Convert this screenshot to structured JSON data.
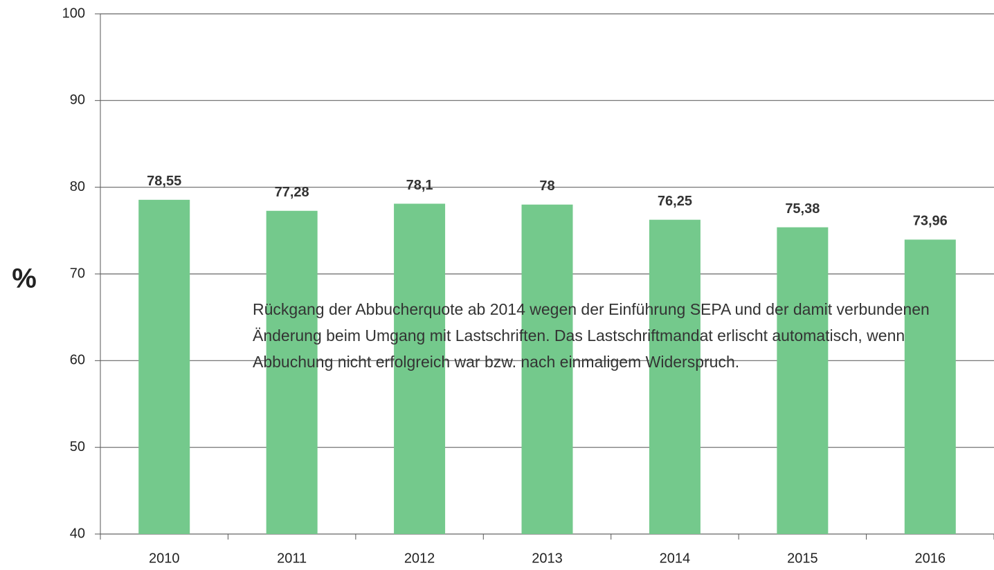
{
  "chart_data": {
    "type": "bar",
    "y_label": "%",
    "annotation": "Rückgang der Abbucherquote ab 2014  wegen der Einführung  SEPA  und der damit verbundenen Änderung beim Umgang mit Lastschriften. Das Lastschriftmandat erlischt automatisch, wenn Abbuchung nicht erfolgreich war bzw. nach einmaligem Widerspruch.",
    "categories": [
      "2010",
      "2011",
      "2012",
      "2013",
      "2014",
      "2015",
      "2016"
    ],
    "values": [
      78.55,
      77.28,
      78.1,
      78,
      76.25,
      75.38,
      73.96
    ],
    "value_labels": [
      "78,55",
      "77,28",
      "78,1",
      "78",
      "76,25",
      "75,38",
      "73,96"
    ],
    "color": "#74c98c",
    "ylim": [
      40,
      100
    ],
    "yticks": [
      40,
      50,
      60,
      70,
      80,
      90,
      100
    ],
    "grid": true
  }
}
